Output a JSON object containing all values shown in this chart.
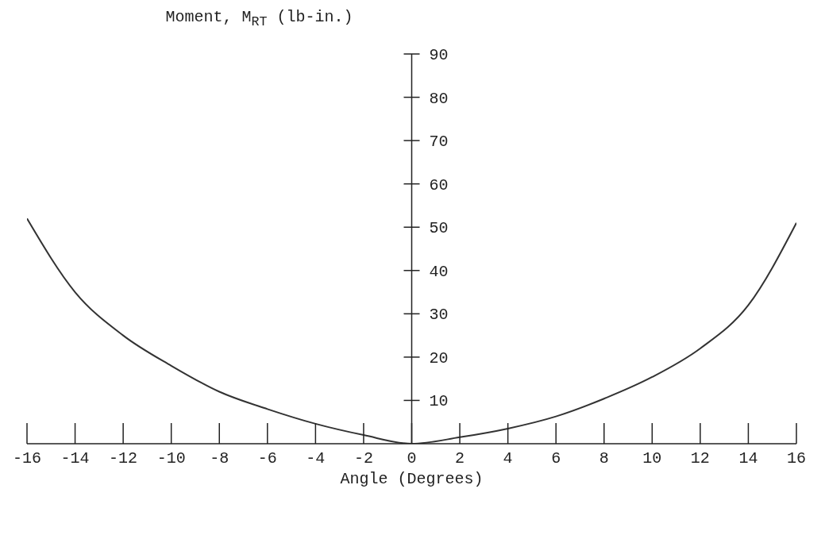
{
  "chart_data": {
    "type": "line",
    "ylabel": "Moment, M$_{RT}$ (lb-in.)",
    "xlabel": "Angle (Degrees)",
    "x": [
      -16,
      -14,
      -12,
      -10,
      -8,
      -6,
      -4,
      -2,
      0,
      2,
      4,
      6,
      8,
      10,
      12,
      14,
      16
    ],
    "series": [
      {
        "color": "#333333",
        "values": [
          52,
          35,
          25,
          18,
          12,
          8,
          4.6,
          2,
          0,
          1.5,
          3.5,
          6.3,
          10.4,
          15.4,
          22,
          32,
          51
        ]
      }
    ],
    "xlim": [
      -16,
      16
    ],
    "xticks": [
      -16,
      -14,
      -12,
      -10,
      -8,
      -6,
      -4,
      -2,
      0,
      2,
      4,
      6,
      8,
      10,
      12,
      14,
      16
    ],
    "ylim": [
      0,
      90
    ],
    "yticks": [
      {
        "value": 0,
        "label": null
      },
      10,
      20,
      30,
      40,
      50,
      60,
      70,
      80,
      90
    ],
    "grid": false,
    "legend": false,
    "marker": "none",
    "line_style": "solid"
  }
}
